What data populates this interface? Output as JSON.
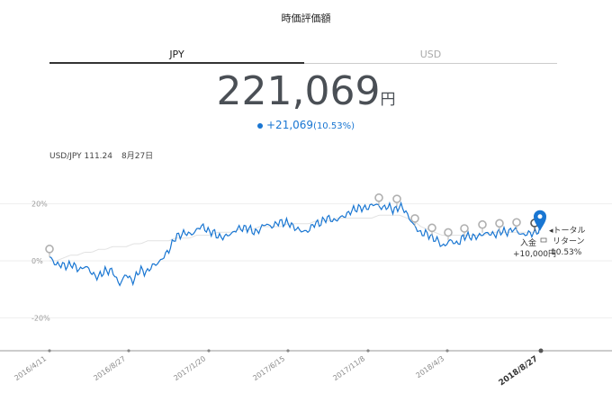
{
  "header": {
    "title": "時価評価額"
  },
  "tabs": {
    "jpy": "JPY",
    "usd": "USD"
  },
  "valuation": {
    "amount": "221,069",
    "unit": "円",
    "change": "+21,069",
    "change_pct": "(10.53%)"
  },
  "fx": {
    "rate": "USD/JPY 111.24",
    "date": "8月27日"
  },
  "chart_labels": {
    "total_return_line1": "◂トータル",
    "total_return_line2": "リターン",
    "total_return_value": "10.53%",
    "deposit_label": "入金",
    "deposit_value": "+10,000円"
  },
  "colors": {
    "accent": "#1976d2",
    "benchmark": "#e2e2e2",
    "marker": "#b0b0b0"
  },
  "chart_data": {
    "type": "line",
    "ylim": [
      -30,
      30
    ],
    "yticks": [
      "20%",
      "0%",
      "-20%"
    ],
    "xticks": [
      "2016/4/11",
      "2016/8/27",
      "2017/1/20",
      "2017/6/15",
      "2017/11/8",
      "2018/4/3",
      "2018/8/27"
    ],
    "series": [
      {
        "values": [
          1,
          -1,
          -2,
          -1,
          -3,
          -2,
          -4,
          -6,
          -3,
          -4,
          -8,
          -5,
          -7,
          -3,
          -4,
          -1,
          0,
          4,
          8,
          10,
          9,
          11,
          12,
          10,
          9,
          8,
          10,
          11,
          12,
          10,
          11,
          13,
          12,
          14,
          13,
          12,
          10,
          11,
          13,
          14,
          15,
          14,
          16,
          17,
          19,
          18,
          20,
          19,
          19,
          18,
          19,
          17,
          12,
          10,
          9,
          8,
          5,
          7,
          6,
          8,
          9,
          8,
          10,
          9,
          10,
          10,
          11,
          10,
          9,
          10,
          10.5
        ]
      },
      {
        "values": [
          0,
          0,
          1,
          2,
          2,
          3,
          3,
          4,
          4,
          5,
          5,
          5,
          6,
          6,
          7,
          7,
          7,
          7,
          8,
          8,
          8,
          9,
          9,
          9,
          10,
          10,
          10,
          11,
          11,
          11,
          12,
          12,
          12,
          12,
          13,
          13,
          13,
          13,
          14,
          14,
          14,
          15,
          15,
          15,
          15,
          15,
          15,
          16,
          16,
          16,
          16,
          15,
          14,
          12,
          11,
          10,
          9,
          9,
          9,
          9,
          9,
          9,
          9,
          10,
          10,
          10,
          10,
          10,
          10,
          10,
          10
        ]
      }
    ],
    "markers": {
      "sell_points": 11,
      "current_point": 1
    }
  }
}
